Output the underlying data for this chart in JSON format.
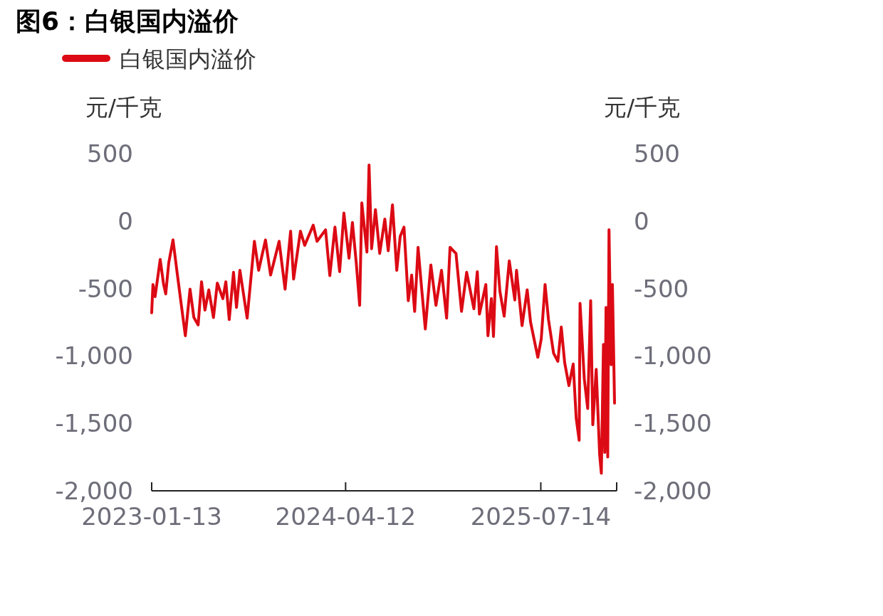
{
  "chart_data": {
    "type": "line",
    "title": "图6：白银国内溢价",
    "ylabel": "元/千克",
    "y2label": "元/千克",
    "legend": "top left",
    "x": [
      "2023-01-13",
      "2023-01-16",
      "2023-01-21",
      "2023-02-02",
      "2023-02-10",
      "2023-02-15",
      "2023-02-22",
      "2023-03-04",
      "2023-03-13",
      "2023-03-21",
      "2023-04-02",
      "2023-04-13",
      "2023-04-22",
      "2023-05-02",
      "2023-05-10",
      "2023-05-18",
      "2023-05-27",
      "2023-06-07",
      "2023-06-16",
      "2023-06-29",
      "2023-07-06",
      "2023-07-14",
      "2023-07-24",
      "2023-07-31",
      "2023-08-08",
      "2023-08-25",
      "2023-09-11",
      "2023-09-21",
      "2023-10-07",
      "2023-10-19",
      "2023-11-08",
      "2023-11-22",
      "2023-12-05",
      "2023-12-12",
      "2023-12-28",
      "2024-01-07",
      "2024-01-27",
      "2024-02-05",
      "2024-02-25",
      "2024-03-06",
      "2024-03-18",
      "2024-03-29",
      "2024-04-08",
      "2024-04-20",
      "2024-04-28",
      "2024-05-07",
      "2024-05-15",
      "2024-05-20",
      "2024-06-01",
      "2024-06-06",
      "2024-06-12",
      "2024-06-21",
      "2024-07-01",
      "2024-07-13",
      "2024-07-21",
      "2024-07-31",
      "2024-08-10",
      "2024-08-18",
      "2024-08-27",
      "2024-09-06",
      "2024-09-14",
      "2024-09-21",
      "2024-09-29",
      "2024-10-07",
      "2024-10-16",
      "2024-10-29",
      "2024-11-10",
      "2024-11-23",
      "2024-12-05",
      "2024-12-13",
      "2024-12-27",
      "2025-01-09",
      "2025-01-21",
      "2025-02-07",
      "2025-02-15",
      "2025-02-20",
      "2025-03-07",
      "2025-03-12",
      "2025-03-20",
      "2025-03-25",
      "2025-04-01",
      "2025-04-09",
      "2025-04-19",
      "2025-05-01",
      "2025-05-14",
      "2025-05-18",
      "2025-05-31",
      "2025-06-12",
      "2025-06-20",
      "2025-07-07",
      "2025-07-15",
      "2025-07-24",
      "2025-08-01",
      "2025-08-13",
      "2025-08-23",
      "2025-08-31",
      "2025-09-08",
      "2025-09-18",
      "2025-09-28",
      "2025-10-05",
      "2025-10-12",
      "2025-10-14",
      "2025-10-24",
      "2025-11-01",
      "2025-11-08",
      "2025-11-13",
      "2025-11-21",
      "2025-11-29",
      "2025-12-03",
      "2025-12-08",
      "2025-12-11",
      "2025-12-14",
      "2025-12-18",
      "2025-12-21",
      "2025-12-26",
      "2025-12-29",
      "2026-01-03"
    ],
    "series": [
      {
        "name": "白银国内溢价",
        "color": "#dc0a14",
        "values": [
          -680,
          -470,
          -560,
          -285,
          -470,
          -540,
          -310,
          -140,
          -365,
          -560,
          -850,
          -505,
          -715,
          -770,
          -450,
          -660,
          -510,
          -715,
          -460,
          -575,
          -450,
          -730,
          -380,
          -640,
          -365,
          -720,
          -150,
          -365,
          -140,
          -400,
          -150,
          -505,
          -75,
          -430,
          -75,
          -180,
          -30,
          -150,
          -65,
          -405,
          -45,
          -375,
          60,
          -275,
          -10,
          -310,
          -625,
          135,
          -230,
          415,
          -205,
          85,
          -240,
          15,
          -220,
          120,
          -365,
          -115,
          -45,
          -590,
          -400,
          -670,
          -195,
          -485,
          -800,
          -325,
          -625,
          -365,
          -720,
          -195,
          -240,
          -670,
          -380,
          -650,
          -375,
          -690,
          -470,
          -850,
          -575,
          -855,
          -190,
          -520,
          -705,
          -295,
          -585,
          -365,
          -775,
          -510,
          -750,
          -1010,
          -875,
          -470,
          -730,
          -980,
          -1040,
          -785,
          -1050,
          -1220,
          -1060,
          -1460,
          -1625,
          -610,
          -1170,
          -1390,
          -590,
          -1510,
          -1100,
          -1730,
          -1870,
          -915,
          -1715,
          -640,
          -1750,
          -65,
          -1065,
          -470,
          -1350
        ]
      }
    ],
    "xlim": [
      "2023-01-13",
      "2026-01-08"
    ],
    "xticks": [
      "2023-01-13",
      "2024-04-12",
      "2025-07-14",
      {
        "value": "2026-01-08",
        "label": null
      }
    ],
    "ylim": [
      -2000,
      500
    ],
    "yticks": [
      500,
      0,
      -500,
      {
        "value": -1000,
        "label": "-1,000"
      },
      {
        "value": -1500,
        "label": "-1,500"
      },
      {
        "value": -2000,
        "label": "-2,000"
      }
    ],
    "y2lim": [
      -2000,
      500
    ],
    "y2ticks": [
      500,
      0,
      -500,
      {
        "value": -1000,
        "label": "-1,000"
      },
      {
        "value": -1500,
        "label": "-1,500"
      },
      {
        "value": -2000,
        "label": "-2,000"
      }
    ]
  }
}
